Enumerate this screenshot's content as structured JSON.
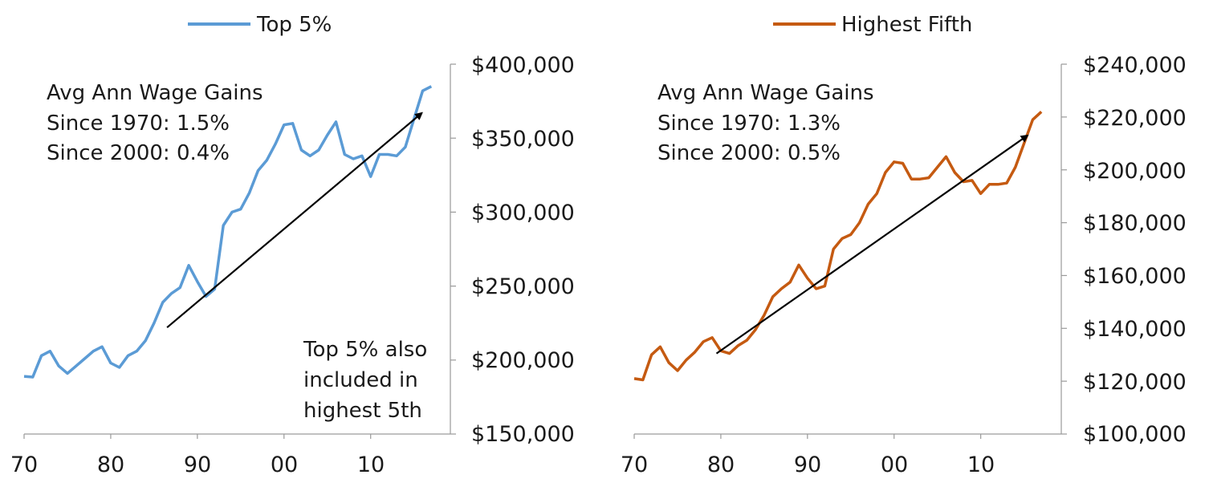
{
  "chart_data": [
    {
      "type": "line",
      "title": "",
      "xlabel": "",
      "ylabel": "",
      "x_tick_labels": [
        "70",
        "80",
        "90",
        "00",
        "10"
      ],
      "y_tick_labels": [
        "$400,000",
        "$350,000",
        "$300,000",
        "$250,000",
        "$200,000",
        "$150,000"
      ],
      "ylim": [
        150000,
        400000
      ],
      "y_axis_side": "right",
      "legend_position": "top",
      "grid": false,
      "series": [
        {
          "name": "Top 5%",
          "color": "#5b9bd5",
          "x": [
            1970,
            1971,
            1972,
            1973,
            1974,
            1975,
            1976,
            1977,
            1978,
            1979,
            1980,
            1981,
            1982,
            1983,
            1984,
            1985,
            1986,
            1987,
            1988,
            1989,
            1990,
            1991,
            1992,
            1993,
            1994,
            1995,
            1996,
            1997,
            1998,
            1999,
            2000,
            2001,
            2002,
            2003,
            2004,
            2005,
            2006,
            2007,
            2008,
            2009,
            2010,
            2011,
            2012,
            2013,
            2014,
            2015,
            2016,
            2017
          ],
          "values": [
            189000,
            188500,
            203000,
            206000,
            196000,
            191000,
            196000,
            201000,
            206000,
            209000,
            198000,
            195000,
            203000,
            206000,
            213000,
            225000,
            239000,
            245000,
            249000,
            264000,
            253000,
            243000,
            248000,
            291000,
            300000,
            302000,
            313000,
            328000,
            335000,
            346000,
            359000,
            360000,
            342000,
            338000,
            342000,
            352000,
            361000,
            339000,
            336000,
            338000,
            324000,
            339000,
            339000,
            338000,
            344000,
            363000,
            382000,
            385000
          ]
        }
      ],
      "annotations": [
        {
          "lines": [
            "Avg Ann Wage Gains",
            "Since 1970: 1.5%",
            "Since 2000: 0.4%"
          ]
        },
        {
          "lines": [
            "Top 5% also",
            "included in",
            "highest 5th"
          ]
        }
      ],
      "trend_arrow": {
        "from": [
          1986.5,
          222000
        ],
        "to": [
          2015.9,
          367000
        ]
      }
    },
    {
      "type": "line",
      "title": "",
      "xlabel": "",
      "ylabel": "",
      "x_tick_labels": [
        "70",
        "80",
        "90",
        "00",
        "10"
      ],
      "y_tick_labels": [
        "$240,000",
        "$220,000",
        "$200,000",
        "$180,000",
        "$160,000",
        "$140,000",
        "$120,000",
        "$100,000"
      ],
      "ylim": [
        100000,
        240000
      ],
      "y_axis_side": "right",
      "legend_position": "top",
      "grid": false,
      "series": [
        {
          "name": "Highest Fifth",
          "color": "#c55a11",
          "x": [
            1970,
            1971,
            1972,
            1973,
            1974,
            1975,
            1976,
            1977,
            1978,
            1979,
            1980,
            1981,
            1982,
            1983,
            1984,
            1985,
            1986,
            1987,
            1988,
            1989,
            1990,
            1991,
            1992,
            1993,
            1994,
            1995,
            1996,
            1997,
            1998,
            1999,
            2000,
            2001,
            2002,
            2003,
            2004,
            2005,
            2006,
            2007,
            2008,
            2009,
            2010,
            2011,
            2012,
            2013,
            2014,
            2015,
            2016,
            2017
          ],
          "values": [
            121000,
            120500,
            130000,
            133000,
            127000,
            124000,
            128000,
            131000,
            135000,
            136500,
            131500,
            130500,
            133500,
            135500,
            139500,
            145000,
            152000,
            155000,
            157500,
            164000,
            159000,
            155000,
            156000,
            170000,
            174000,
            175500,
            180000,
            187000,
            191000,
            199000,
            203000,
            202500,
            196500,
            196500,
            197000,
            201000,
            205000,
            199000,
            195500,
            196000,
            191000,
            194500,
            194500,
            195000,
            201000,
            210000,
            219000,
            222000
          ]
        }
      ],
      "annotations": [
        {
          "lines": [
            "Avg Ann Wage Gains",
            "Since 1970: 1.3%",
            "Since 2000: 0.5%"
          ]
        }
      ],
      "trend_arrow": {
        "from": [
          1979.5,
          130500
        ],
        "to": [
          2015.4,
          213000
        ]
      }
    }
  ]
}
